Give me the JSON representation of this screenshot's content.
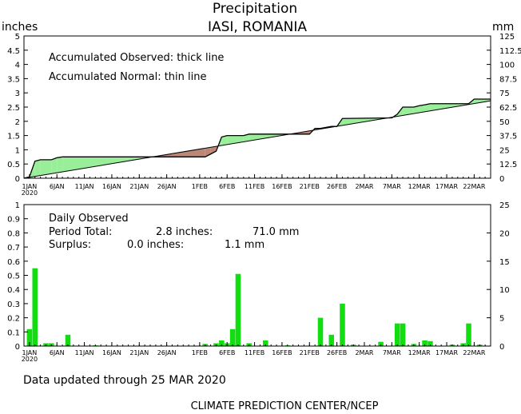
{
  "title": "Precipitation",
  "subtitle": "IASI, ROMANIA",
  "footer_updated": "Data updated through 25 MAR 2020",
  "footer_credit": "CLIMATE PREDICTION CENTER/NCEP",
  "colors": {
    "surplus": "#99ee99",
    "deficit": "#bb8877",
    "bars": "#11dd11",
    "line": "#000000"
  },
  "chart_data": [
    {
      "type": "area",
      "name": "accumulated",
      "ylabel_left": "inches",
      "ylabel_right": "mm",
      "annotations": [
        "Accumulated Observed: thick line",
        "Accumulated Normal: thin line"
      ],
      "ylim": [
        0,
        5
      ],
      "yticks_left": [
        "0",
        "0.5",
        "1",
        "1.5",
        "2",
        "2.5",
        "3",
        "3.5",
        "4",
        "4.5",
        "5"
      ],
      "yticks_right": [
        "0",
        "12.5",
        "25",
        "37.5",
        "50",
        "62.5",
        "75",
        "87.5",
        "100",
        "112.5",
        "125"
      ],
      "x_ticks": [
        {
          "day": 1,
          "label": "1JAN",
          "sub": "2020"
        },
        {
          "day": 6,
          "label": "6JAN"
        },
        {
          "day": 11,
          "label": "11JAN"
        },
        {
          "day": 16,
          "label": "16JAN"
        },
        {
          "day": 21,
          "label": "21JAN"
        },
        {
          "day": 26,
          "label": "26JAN"
        },
        {
          "day": 32,
          "label": "1FEB"
        },
        {
          "day": 37,
          "label": "6FEB"
        },
        {
          "day": 42,
          "label": "11FEB"
        },
        {
          "day": 47,
          "label": "16FEB"
        },
        {
          "day": 52,
          "label": "21FEB"
        },
        {
          "day": 57,
          "label": "26FEB"
        },
        {
          "day": 62,
          "label": "2MAR"
        },
        {
          "day": 67,
          "label": "7MAR"
        },
        {
          "day": 72,
          "label": "12MAR"
        },
        {
          "day": 77,
          "label": "17MAR"
        },
        {
          "day": 82,
          "label": "22MAR"
        }
      ],
      "x_range": [
        0,
        85
      ],
      "observed": [
        [
          0,
          0
        ],
        [
          1,
          0.05
        ],
        [
          2,
          0.6
        ],
        [
          3,
          0.65
        ],
        [
          5,
          0.65
        ],
        [
          6,
          0.72
        ],
        [
          7,
          0.75
        ],
        [
          33,
          0.75
        ],
        [
          34,
          0.85
        ],
        [
          35,
          0.95
        ],
        [
          36,
          1.45
        ],
        [
          37,
          1.5
        ],
        [
          40,
          1.5
        ],
        [
          41,
          1.55
        ],
        [
          52,
          1.55
        ],
        [
          53,
          1.75
        ],
        [
          54,
          1.75
        ],
        [
          56,
          1.82
        ],
        [
          57,
          1.82
        ],
        [
          58,
          2.1
        ],
        [
          67,
          2.12
        ],
        [
          68,
          2.25
        ],
        [
          69,
          2.5
        ],
        [
          71,
          2.5
        ],
        [
          72,
          2.55
        ],
        [
          73,
          2.58
        ],
        [
          74,
          2.62
        ],
        [
          81,
          2.62
        ],
        [
          82,
          2.78
        ],
        [
          85,
          2.78
        ]
      ],
      "normal": [
        [
          0,
          0
        ],
        [
          85,
          2.72
        ]
      ]
    },
    {
      "type": "bar",
      "name": "daily",
      "annotation_title": "Daily Observed",
      "period_total": {
        "label": "Period Total:",
        "inches": "2.8 inches:",
        "mm": "71.0 mm"
      },
      "surplus": {
        "label": "Surplus:",
        "inches": "0.0 inches:",
        "mm": "1.1 mm"
      },
      "ylim": [
        0,
        1
      ],
      "yticks_left": [
        "0",
        "0.1",
        "0.2",
        "0.3",
        "0.4",
        "0.5",
        "0.6",
        "0.7",
        "0.8",
        "0.9",
        "1"
      ],
      "yticks_right": [
        "0",
        "5",
        "10",
        "15",
        "20",
        "25"
      ],
      "x_range": [
        0,
        85
      ],
      "days": [
        1,
        2,
        4,
        5,
        8,
        13,
        33,
        35,
        36,
        37,
        38,
        39,
        41,
        44,
        48,
        54,
        56,
        58,
        60,
        65,
        68,
        69,
        71,
        73,
        74,
        78,
        80,
        81,
        83
      ],
      "values": [
        0.12,
        0.55,
        0.02,
        0.02,
        0.08,
        0.005,
        0.015,
        0.02,
        0.04,
        0.02,
        0.12,
        0.51,
        0.02,
        0.04,
        0.005,
        0.2,
        0.08,
        0.3,
        0.01,
        0.03,
        0.16,
        0.16,
        0.015,
        0.04,
        0.035,
        0.01,
        0.02,
        0.16,
        0.01
      ]
    }
  ]
}
